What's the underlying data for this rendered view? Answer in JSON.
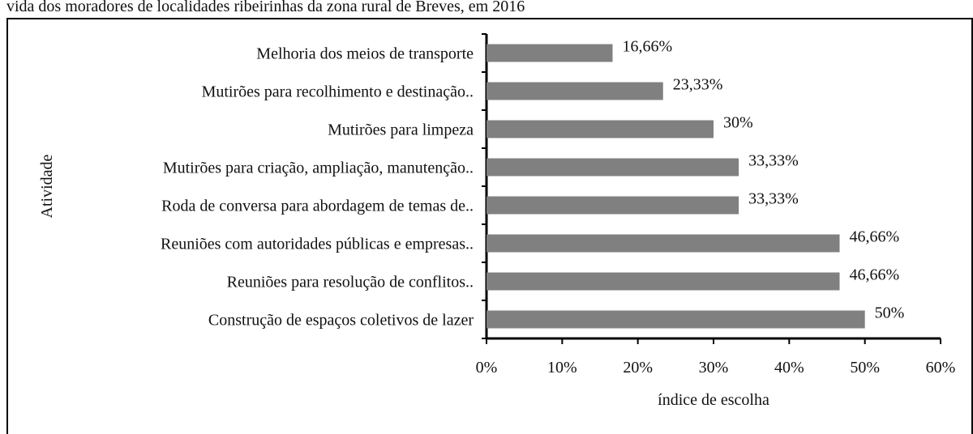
{
  "chart_data": {
    "type": "barh",
    "title": "vida dos moradores de localidades ribeirinhas da zona rural de Breves, em 2016",
    "ylabel": "Atividade",
    "xlabel": "índice de escolha",
    "categories": [
      "Melhoria dos meios de transporte",
      "Mutirões para recolhimento e destinação..",
      "Mutirões para limpeza",
      "Mutirões para criação, ampliação, manutenção..",
      "Roda de conversa para abordagem de temas de..",
      "Reuniões com autoridades públicas e empresas..",
      "Reuniões para resolução de conflitos..",
      "Construção de espaços coletivos de lazer"
    ],
    "values": [
      16.66,
      23.33,
      30,
      33.33,
      33.33,
      46.66,
      46.66,
      50
    ],
    "value_labels": [
      "16,66%",
      "23,33%",
      "30%",
      "33,33%",
      "33,33%",
      "46,66%",
      "46,66%",
      "50%"
    ],
    "color": "#808080",
    "xlim": [
      0,
      60
    ],
    "xticks": [
      {
        "value": 0,
        "label": "0%"
      },
      {
        "value": 10,
        "label": "10%"
      },
      {
        "value": 20,
        "label": "20%"
      },
      {
        "value": 30,
        "label": "30%"
      },
      {
        "value": 40,
        "label": "40%"
      },
      {
        "value": 50,
        "label": "50%"
      },
      {
        "value": 60,
        "label": "60%"
      }
    ]
  }
}
